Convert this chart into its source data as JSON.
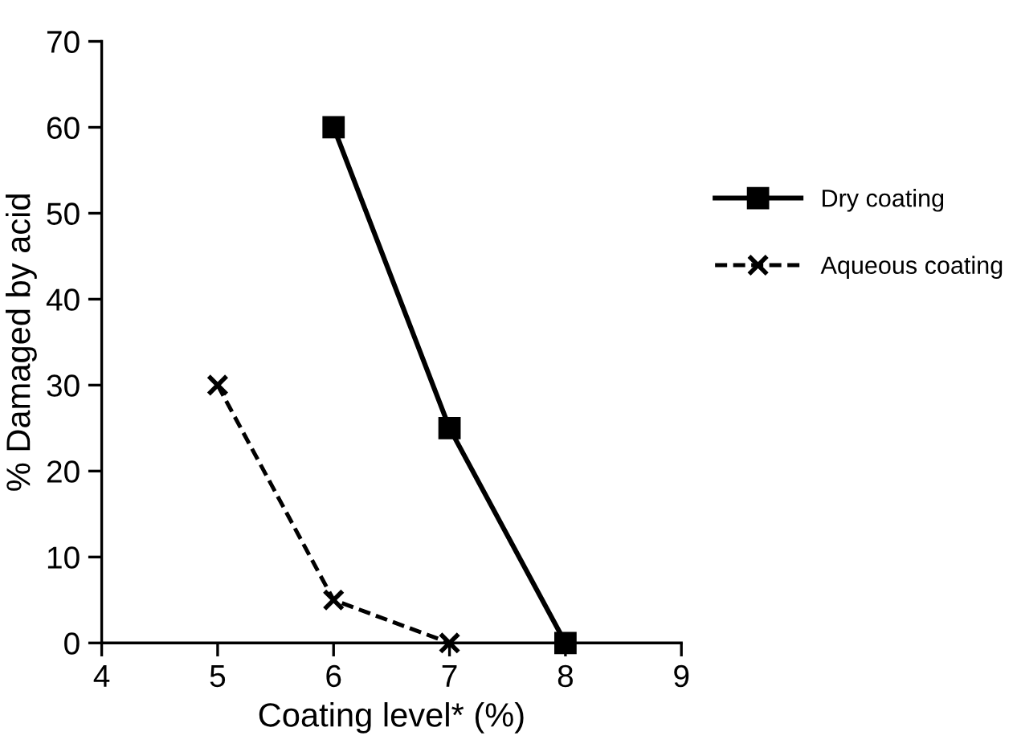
{
  "chart_data": {
    "type": "line",
    "xlabel": "Coating level* (%)",
    "ylabel": "% Damaged by acid",
    "xlim": [
      4,
      9
    ],
    "xticks": [
      4,
      5,
      6,
      7,
      8,
      9
    ],
    "ylim": [
      0,
      70
    ],
    "yticks": [
      0,
      10,
      20,
      30,
      40,
      50,
      60,
      70
    ],
    "grid": false,
    "legend": "right",
    "series": [
      {
        "name": "Dry coating",
        "color": "#000000",
        "x": [
          6,
          7,
          8
        ],
        "values": [
          60,
          25,
          0
        ],
        "marker": "square",
        "line_style": "solid"
      },
      {
        "name": "Aqueous coating",
        "color": "#000000",
        "x": [
          5,
          6,
          7
        ],
        "values": [
          30,
          5,
          0
        ],
        "marker": "cross",
        "line_style": "dashed"
      }
    ]
  }
}
